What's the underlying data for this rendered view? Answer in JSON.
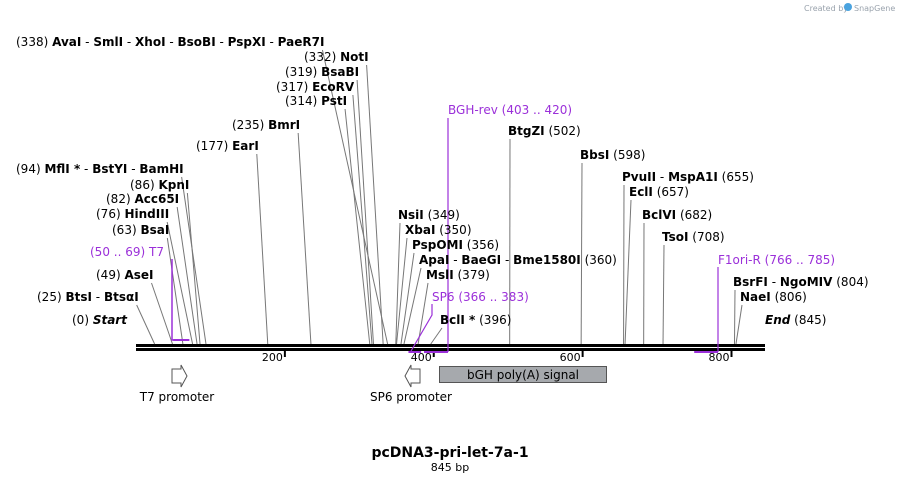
{
  "credit": {
    "prefix": "Created by",
    "brand": "SnapGene"
  },
  "map": {
    "title": "pcDNA3-pri-let-7a-1",
    "length_label": "845 bp",
    "length": 845,
    "ticks": [
      {
        "value": 200,
        "label": "200"
      },
      {
        "value": 400,
        "label": "400"
      },
      {
        "value": 600,
        "label": "600"
      },
      {
        "value": 800,
        "label": "800"
      }
    ]
  },
  "sites": [
    {
      "pos": 0,
      "pos_label": "(0)",
      "names": [
        "Start"
      ],
      "italic": true
    },
    {
      "pos": 25,
      "pos_label": "(25)",
      "names": [
        "BtsI",
        "BtsαI"
      ]
    },
    {
      "pos": 49,
      "pos_label": "(49)",
      "names": [
        "AseI"
      ]
    },
    {
      "pos": 63,
      "pos_label": "(63)",
      "names": [
        "BsaI"
      ]
    },
    {
      "pos": 76,
      "pos_label": "(76)",
      "names": [
        "HindIII"
      ]
    },
    {
      "pos": 82,
      "pos_label": "(82)",
      "names": [
        "Acc65I"
      ]
    },
    {
      "pos": 86,
      "pos_label": "(86)",
      "names": [
        "KpnI"
      ]
    },
    {
      "pos": 94,
      "pos_label": "(94)",
      "names": [
        "MflI *",
        "BstYI",
        "BamHI"
      ]
    },
    {
      "pos": 177,
      "pos_label": "(177)",
      "names": [
        "EarI"
      ]
    },
    {
      "pos": 235,
      "pos_label": "(235)",
      "names": [
        "BmrI"
      ]
    },
    {
      "pos": 314,
      "pos_label": "(314)",
      "names": [
        "PstI"
      ]
    },
    {
      "pos": 317,
      "pos_label": "(317)",
      "names": [
        "EcoRV"
      ]
    },
    {
      "pos": 319,
      "pos_label": "(319)",
      "names": [
        "BsaBI"
      ]
    },
    {
      "pos": 332,
      "pos_label": "(332)",
      "names": [
        "NotI"
      ]
    },
    {
      "pos": 338,
      "pos_label": "(338)",
      "names": [
        "AvaI",
        "SmlI",
        "XhoI",
        "BsoBI",
        "PspXI",
        "PaeR7I"
      ]
    },
    {
      "pos": 349,
      "pos_label": "(349)",
      "names": [
        "NsiI"
      ]
    },
    {
      "pos": 350,
      "pos_label": "(350)",
      "names": [
        "XbaI"
      ]
    },
    {
      "pos": 356,
      "pos_label": "(356)",
      "names": [
        "PspOMI"
      ]
    },
    {
      "pos": 360,
      "pos_label": "(360)",
      "names": [
        "ApaI",
        "BaeGI",
        "Bme1580I"
      ]
    },
    {
      "pos": 379,
      "pos_label": "(379)",
      "names": [
        "MslI"
      ]
    },
    {
      "pos": 396,
      "pos_label": "(396)",
      "names": [
        "BclI *"
      ]
    },
    {
      "pos": 502,
      "pos_label": "(502)",
      "names": [
        "BtgZI"
      ]
    },
    {
      "pos": 598,
      "pos_label": "(598)",
      "names": [
        "BbsI"
      ]
    },
    {
      "pos": 655,
      "pos_label": "(655)",
      "names": [
        "PvuII",
        "MspA1I"
      ]
    },
    {
      "pos": 657,
      "pos_label": "(657)",
      "names": [
        "EclI"
      ]
    },
    {
      "pos": 682,
      "pos_label": "(682)",
      "names": [
        "BclVI"
      ]
    },
    {
      "pos": 708,
      "pos_label": "(708)",
      "names": [
        "TsoI"
      ]
    },
    {
      "pos": 804,
      "pos_label": "(804)",
      "names": [
        "BsrFI",
        "NgoMIV"
      ]
    },
    {
      "pos": 806,
      "pos_label": "(806)",
      "names": [
        "NaeI"
      ]
    },
    {
      "pos": 845,
      "pos_label": "(845)",
      "names": [
        "End"
      ],
      "italic": true
    }
  ],
  "primers": [
    {
      "name": "T7",
      "range": "(50 .. 69)",
      "start": 50,
      "end": 69
    },
    {
      "name": "SP6",
      "range": "(366 .. 383)",
      "start": 366,
      "end": 383
    },
    {
      "name": "BGH-rev",
      "range": "(403 .. 420)",
      "start": 403,
      "end": 420
    },
    {
      "name": "F1ori-R",
      "range": "(766 .. 785)",
      "start": 766,
      "end": 785
    }
  ],
  "features": [
    {
      "name": "T7 promoter",
      "kind": "promoter",
      "direction": "forward",
      "start": 36,
      "end": 54
    },
    {
      "name": "SP6 promoter",
      "kind": "promoter",
      "direction": "reverse",
      "start": 364,
      "end": 382
    },
    {
      "name": "bGH poly(A) signal",
      "kind": "polyA",
      "start": 404,
      "end": 628
    }
  ],
  "colors": {
    "primer": "#9b30d9",
    "feature_fill": "#a6a9ad",
    "backbone": "#000000",
    "site_line": "#777777",
    "credit_logo": "#4aa3df"
  }
}
